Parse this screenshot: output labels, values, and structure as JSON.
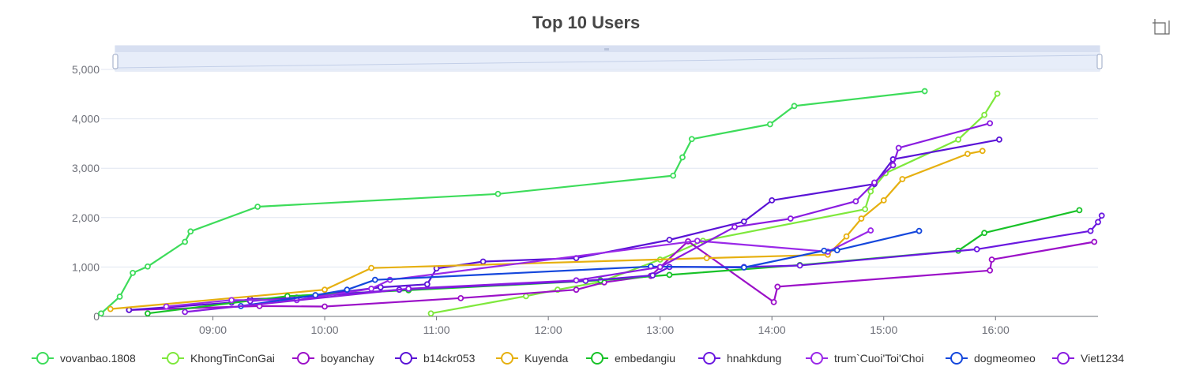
{
  "chart_data": {
    "type": "line",
    "title": "Top 10 Users",
    "xlabel": "",
    "ylabel": "",
    "ylim": [
      0,
      5000
    ],
    "yticks": [
      0,
      1000,
      2000,
      3000,
      4000,
      5000
    ],
    "ytick_labels": [
      "0",
      "1,000",
      "2,000",
      "3,000",
      "4,000",
      "5,000"
    ],
    "xlim": [
      "08:00",
      "16:55"
    ],
    "xtick_labels": [
      "09:00",
      "10:00",
      "11:00",
      "12:00",
      "13:00",
      "14:00",
      "15:00",
      "16:00"
    ],
    "grid": "horizontal",
    "legend_position": "bottom",
    "series": [
      {
        "name": "vovanbao.1808",
        "color": "#3ddc5a",
        "points": [
          [
            "08:00",
            60
          ],
          [
            "08:10",
            400
          ],
          [
            "08:17",
            880
          ],
          [
            "08:25",
            1010
          ],
          [
            "08:45",
            1510
          ],
          [
            "08:48",
            1720
          ],
          [
            "09:24",
            2220
          ],
          [
            "11:33",
            2480
          ],
          [
            "13:07",
            2850
          ],
          [
            "13:12",
            3220
          ],
          [
            "13:17",
            3590
          ],
          [
            "13:59",
            3890
          ],
          [
            "14:12",
            4260
          ],
          [
            "15:22",
            4560
          ]
        ]
      },
      {
        "name": "KhongTinConGai",
        "color": "#7ee83c",
        "points": [
          [
            "10:57",
            60
          ],
          [
            "11:48",
            410
          ],
          [
            "12:05",
            540
          ],
          [
            "12:28",
            700
          ],
          [
            "13:00",
            1150
          ],
          [
            "13:23",
            1530
          ],
          [
            "14:50",
            2170
          ],
          [
            "14:53",
            2530
          ],
          [
            "15:01",
            2900
          ],
          [
            "15:40",
            3580
          ],
          [
            "15:54",
            4080
          ],
          [
            "16:01",
            4510
          ]
        ]
      },
      {
        "name": "boyanchay",
        "color": "#9b10c8",
        "points": [
          [
            "08:15",
            130
          ],
          [
            "09:25",
            210
          ],
          [
            "10:00",
            200
          ],
          [
            "11:13",
            370
          ],
          [
            "12:15",
            540
          ],
          [
            "12:30",
            690
          ],
          [
            "12:55",
            820
          ],
          [
            "13:15",
            1520
          ],
          [
            "14:01",
            290
          ],
          [
            "14:03",
            600
          ],
          [
            "15:57",
            930
          ],
          [
            "15:58",
            1150
          ],
          [
            "16:53",
            1510
          ]
        ]
      },
      {
        "name": "b14ckr053",
        "color": "#5a13d6",
        "points": [
          [
            "08:15",
            130
          ],
          [
            "09:10",
            280
          ],
          [
            "09:20",
            350
          ],
          [
            "09:45",
            380
          ],
          [
            "10:30",
            590
          ],
          [
            "10:55",
            650
          ],
          [
            "11:00",
            970
          ],
          [
            "11:25",
            1110
          ],
          [
            "12:15",
            1180
          ],
          [
            "13:05",
            1550
          ],
          [
            "13:45",
            1920
          ],
          [
            "14:00",
            2350
          ],
          [
            "14:55",
            2680
          ],
          [
            "15:05",
            3180
          ],
          [
            "16:02",
            3580
          ]
        ]
      },
      {
        "name": "Kuyenda",
        "color": "#e6b010",
        "points": [
          [
            "08:05",
            150
          ],
          [
            "10:00",
            540
          ],
          [
            "10:25",
            980
          ],
          [
            "13:25",
            1180
          ],
          [
            "14:30",
            1250
          ],
          [
            "14:40",
            1620
          ],
          [
            "14:48",
            1980
          ],
          [
            "15:00",
            2350
          ],
          [
            "15:10",
            2780
          ],
          [
            "15:45",
            3290
          ],
          [
            "15:53",
            3350
          ]
        ]
      },
      {
        "name": "embedangiu",
        "color": "#18c228",
        "points": [
          [
            "08:25",
            60
          ],
          [
            "09:40",
            410
          ],
          [
            "10:45",
            530
          ],
          [
            "12:28",
            730
          ],
          [
            "13:05",
            840
          ],
          [
            "14:15",
            1040
          ],
          [
            "15:40",
            1330
          ],
          [
            "15:54",
            1690
          ],
          [
            "16:45",
            2150
          ]
        ]
      },
      {
        "name": "hnahkdung",
        "color": "#6a18e0",
        "points": [
          [
            "09:20",
            310
          ],
          [
            "10:40",
            540
          ],
          [
            "12:20",
            720
          ],
          [
            "12:56",
            830
          ],
          [
            "13:05",
            1000
          ],
          [
            "13:45",
            1000
          ],
          [
            "14:15",
            1030
          ],
          [
            "15:50",
            1360
          ],
          [
            "16:51",
            1730
          ],
          [
            "16:55",
            1910
          ],
          [
            "16:57",
            2040
          ]
        ]
      },
      {
        "name": "trum`Cuoi'Toi'Choi",
        "color": "#9a28e8",
        "points": [
          [
            "08:35",
            200
          ],
          [
            "09:10",
            330
          ],
          [
            "09:45",
            330
          ],
          [
            "10:25",
            560
          ],
          [
            "10:35",
            740
          ],
          [
            "13:20",
            1530
          ],
          [
            "14:30",
            1310
          ],
          [
            "14:53",
            1740
          ]
        ]
      },
      {
        "name": "dogmeomeo",
        "color": "#1447dc",
        "points": [
          [
            "09:15",
            210
          ],
          [
            "09:55",
            430
          ],
          [
            "10:12",
            540
          ],
          [
            "10:27",
            740
          ],
          [
            "12:55",
            1010
          ],
          [
            "13:45",
            990
          ],
          [
            "14:28",
            1330
          ],
          [
            "14:35",
            1340
          ],
          [
            "15:19",
            1730
          ]
        ]
      },
      {
        "name": "Viet1234",
        "color": "#8a1ce0",
        "points": [
          [
            "08:45",
            90
          ],
          [
            "10:45",
            560
          ],
          [
            "12:15",
            730
          ],
          [
            "13:00",
            1000
          ],
          [
            "13:40",
            1810
          ],
          [
            "14:10",
            1980
          ],
          [
            "14:45",
            2330
          ],
          [
            "14:55",
            2710
          ],
          [
            "15:05",
            3060
          ],
          [
            "15:08",
            3410
          ],
          [
            "15:57",
            3910
          ]
        ]
      }
    ]
  }
}
